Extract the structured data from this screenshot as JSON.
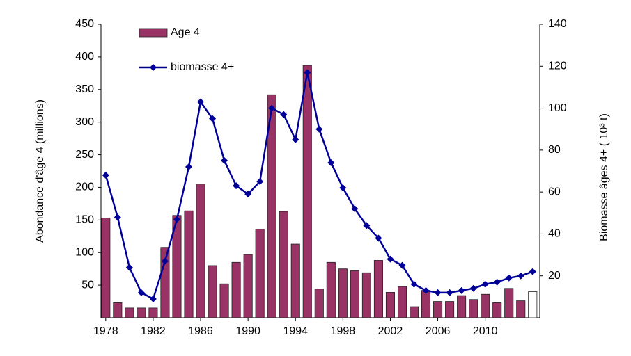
{
  "chart_data": {
    "type": "bar_line",
    "x": [
      1978,
      1979,
      1980,
      1981,
      1982,
      1983,
      1984,
      1985,
      1986,
      1987,
      1988,
      1989,
      1990,
      1991,
      1992,
      1993,
      1994,
      1995,
      1996,
      1997,
      1998,
      1999,
      2000,
      2001,
      2002,
      2003,
      2004,
      2005,
      2006,
      2007,
      2008,
      2009,
      2010,
      2011,
      2012,
      2013,
      2014
    ],
    "xlim": [
      1977.6,
      2014.6
    ],
    "xticks": [
      1978,
      1982,
      1986,
      1990,
      1994,
      1998,
      2002,
      2006,
      2010
    ],
    "ylabel": "Abondance d'âge 4 (millions)",
    "y2label": "Biomasse âges 4+ ( 10³ t)",
    "ylim": [
      0,
      450
    ],
    "yticks": [
      50,
      100,
      150,
      200,
      250,
      300,
      350,
      400,
      450
    ],
    "y2lim": [
      0,
      140
    ],
    "y2ticks": [
      20,
      40,
      60,
      80,
      100,
      120,
      140
    ],
    "legend": "upper left",
    "series": [
      {
        "name": "Age 4",
        "type": "bar",
        "color": "#993366",
        "colors": [
          "#993366",
          "#993366",
          "#993366",
          "#993366",
          "#993366",
          "#993366",
          "#993366",
          "#993366",
          "#993366",
          "#993366",
          "#993366",
          "#993366",
          "#993366",
          "#993366",
          "#993366",
          "#993366",
          "#993366",
          "#993366",
          "#993366",
          "#993366",
          "#993366",
          "#993366",
          "#993366",
          "#993366",
          "#993366",
          "#993366",
          "#993366",
          "#993366",
          "#993366",
          "#993366",
          "#993366",
          "#993366",
          "#993366",
          "#993366",
          "#993366",
          "#993366",
          "#ffffff"
        ],
        "values": [
          153,
          23,
          15,
          15,
          15,
          108,
          157,
          164,
          205,
          80,
          52,
          85,
          97,
          136,
          342,
          163,
          113,
          387,
          44,
          85,
          75,
          72,
          69,
          88,
          39,
          48,
          17,
          42,
          25,
          25,
          34,
          28,
          36,
          23,
          45,
          26,
          40
        ]
      },
      {
        "name": "biomasse 4+",
        "type": "line",
        "axis": "y2",
        "color": "#000099",
        "values": [
          68,
          48,
          24,
          12,
          9,
          27,
          47,
          72,
          103,
          95,
          75,
          63,
          59,
          65,
          100,
          97,
          85,
          117,
          90,
          74,
          62,
          52,
          44,
          38,
          28,
          25,
          16,
          13,
          12,
          12,
          13,
          14,
          16,
          17,
          19,
          20,
          22
        ]
      }
    ]
  }
}
